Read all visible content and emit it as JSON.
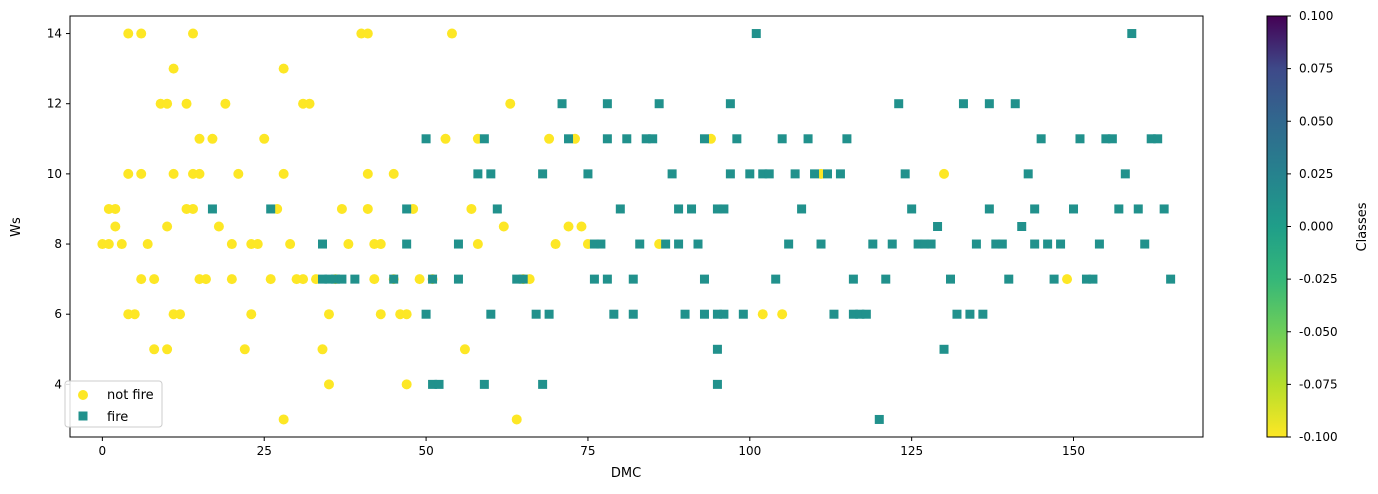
{
  "chart_data": {
    "type": "scatter",
    "xlabel": "DMC",
    "ylabel": "Ws",
    "xlim": [
      -5,
      170
    ],
    "ylim": [
      2.5,
      14.5
    ],
    "xticks": [
      0,
      25,
      50,
      75,
      100,
      125,
      150
    ],
    "yticks": [
      4,
      6,
      8,
      10,
      12,
      14
    ],
    "legend_position": "lower-left",
    "grid": false,
    "colorbar": {
      "label": "Classes",
      "range": [
        -0.1,
        0.1
      ],
      "colormap": "viridis",
      "ticks": [
        "0.100",
        "0.075",
        "0.050",
        "0.025",
        "0.000",
        "-0.025",
        "-0.050",
        "-0.075",
        "-0.100"
      ]
    },
    "series": [
      {
        "name": "not fire",
        "marker": "circle",
        "color": "#fde725",
        "points": [
          [
            0,
            8
          ],
          [
            1,
            9
          ],
          [
            1,
            8
          ],
          [
            2,
            9
          ],
          [
            2,
            8.5
          ],
          [
            3,
            8
          ],
          [
            4,
            14
          ],
          [
            4,
            10
          ],
          [
            4,
            6
          ],
          [
            5,
            6
          ],
          [
            6,
            14
          ],
          [
            6,
            10
          ],
          [
            6,
            7
          ],
          [
            7,
            8
          ],
          [
            8,
            5
          ],
          [
            8,
            7
          ],
          [
            9,
            12
          ],
          [
            10,
            12
          ],
          [
            10,
            8.5
          ],
          [
            10,
            5
          ],
          [
            11,
            13
          ],
          [
            11,
            10
          ],
          [
            11,
            6
          ],
          [
            12,
            6
          ],
          [
            13,
            12
          ],
          [
            13,
            9
          ],
          [
            14,
            14
          ],
          [
            14,
            10
          ],
          [
            14,
            9
          ],
          [
            15,
            10
          ],
          [
            15,
            11
          ],
          [
            15,
            7
          ],
          [
            16,
            7
          ],
          [
            17,
            11
          ],
          [
            18,
            8.5
          ],
          [
            19,
            12
          ],
          [
            20,
            8
          ],
          [
            20,
            7
          ],
          [
            21,
            10
          ],
          [
            22,
            5
          ],
          [
            23,
            8
          ],
          [
            23,
            6
          ],
          [
            24,
            8
          ],
          [
            25,
            11
          ],
          [
            26,
            7
          ],
          [
            27,
            9
          ],
          [
            28,
            13
          ],
          [
            28,
            10
          ],
          [
            28,
            3
          ],
          [
            29,
            8
          ],
          [
            30,
            7
          ],
          [
            31,
            12
          ],
          [
            31,
            7
          ],
          [
            32,
            12
          ],
          [
            33,
            7
          ],
          [
            34,
            5
          ],
          [
            35,
            6
          ],
          [
            35,
            4
          ],
          [
            36,
            7
          ],
          [
            37,
            9
          ],
          [
            38,
            8
          ],
          [
            40,
            14
          ],
          [
            41,
            14
          ],
          [
            41,
            10
          ],
          [
            41,
            9
          ],
          [
            42,
            8
          ],
          [
            42,
            7
          ],
          [
            43,
            8
          ],
          [
            43,
            6
          ],
          [
            45,
            10
          ],
          [
            45,
            7
          ],
          [
            46,
            6
          ],
          [
            47,
            6
          ],
          [
            47,
            4
          ],
          [
            48,
            9
          ],
          [
            49,
            7
          ],
          [
            51,
            7
          ],
          [
            53,
            11
          ],
          [
            54,
            14
          ],
          [
            56,
            5
          ],
          [
            57,
            9
          ],
          [
            58,
            11
          ],
          [
            58,
            8
          ],
          [
            62,
            8.5
          ],
          [
            63,
            12
          ],
          [
            64,
            3
          ],
          [
            65,
            7
          ],
          [
            66,
            7
          ],
          [
            69,
            11
          ],
          [
            70,
            8
          ],
          [
            72,
            8.5
          ],
          [
            73,
            11
          ],
          [
            74,
            8.5
          ],
          [
            75,
            8
          ],
          [
            86,
            8
          ],
          [
            94,
            11
          ],
          [
            102,
            6
          ],
          [
            105,
            6
          ],
          [
            111,
            10
          ],
          [
            130,
            10
          ],
          [
            149,
            7
          ]
        ]
      },
      {
        "name": "fire",
        "marker": "square",
        "color": "#21918c",
        "points": [
          [
            17,
            9
          ],
          [
            26,
            9
          ],
          [
            34,
            8
          ],
          [
            34,
            7
          ],
          [
            35,
            7
          ],
          [
            36,
            7
          ],
          [
            37,
            7
          ],
          [
            39,
            7
          ],
          [
            45,
            7
          ],
          [
            47,
            9
          ],
          [
            47,
            8
          ],
          [
            50,
            11
          ],
          [
            50,
            6
          ],
          [
            51,
            7
          ],
          [
            51,
            4
          ],
          [
            52,
            4
          ],
          [
            55,
            8
          ],
          [
            55,
            7
          ],
          [
            58,
            10
          ],
          [
            59,
            11
          ],
          [
            59,
            4
          ],
          [
            60,
            10
          ],
          [
            60,
            6
          ],
          [
            61,
            9
          ],
          [
            64,
            7
          ],
          [
            65,
            7
          ],
          [
            67,
            6
          ],
          [
            68,
            10
          ],
          [
            68,
            4
          ],
          [
            69,
            6
          ],
          [
            71,
            12
          ],
          [
            72,
            11
          ],
          [
            75,
            10
          ],
          [
            76,
            8
          ],
          [
            76,
            7
          ],
          [
            77,
            8
          ],
          [
            78,
            12
          ],
          [
            78,
            11
          ],
          [
            78,
            7
          ],
          [
            79,
            6
          ],
          [
            80,
            9
          ],
          [
            81,
            11
          ],
          [
            82,
            7
          ],
          [
            82,
            6
          ],
          [
            83,
            8
          ],
          [
            84,
            11
          ],
          [
            85,
            11
          ],
          [
            86,
            12
          ],
          [
            87,
            8
          ],
          [
            88,
            10
          ],
          [
            89,
            9
          ],
          [
            89,
            8
          ],
          [
            90,
            6
          ],
          [
            91,
            9
          ],
          [
            92,
            8
          ],
          [
            93,
            11
          ],
          [
            93,
            7
          ],
          [
            93,
            6
          ],
          [
            95,
            9
          ],
          [
            95,
            6
          ],
          [
            95,
            5
          ],
          [
            95,
            4
          ],
          [
            96,
            9
          ],
          [
            96,
            6
          ],
          [
            97,
            12
          ],
          [
            97,
            10
          ],
          [
            98,
            11
          ],
          [
            99,
            6
          ],
          [
            100,
            10
          ],
          [
            101,
            14
          ],
          [
            102,
            10
          ],
          [
            103,
            10
          ],
          [
            104,
            7
          ],
          [
            105,
            11
          ],
          [
            106,
            8
          ],
          [
            107,
            10
          ],
          [
            108,
            9
          ],
          [
            109,
            11
          ],
          [
            110,
            10
          ],
          [
            111,
            8
          ],
          [
            112,
            10
          ],
          [
            113,
            6
          ],
          [
            114,
            10
          ],
          [
            115,
            11
          ],
          [
            116,
            7
          ],
          [
            116,
            6
          ],
          [
            117,
            6
          ],
          [
            118,
            6
          ],
          [
            119,
            8
          ],
          [
            120,
            3
          ],
          [
            121,
            7
          ],
          [
            122,
            8
          ],
          [
            123,
            12
          ],
          [
            124,
            10
          ],
          [
            125,
            9
          ],
          [
            126,
            8
          ],
          [
            127,
            8
          ],
          [
            128,
            8
          ],
          [
            129,
            8.5
          ],
          [
            130,
            5
          ],
          [
            131,
            7
          ],
          [
            132,
            6
          ],
          [
            133,
            12
          ],
          [
            134,
            6
          ],
          [
            135,
            8
          ],
          [
            136,
            6
          ],
          [
            137,
            12
          ],
          [
            137,
            9
          ],
          [
            138,
            8
          ],
          [
            139,
            8
          ],
          [
            140,
            7
          ],
          [
            141,
            12
          ],
          [
            142,
            8.5
          ],
          [
            143,
            10
          ],
          [
            144,
            9
          ],
          [
            144,
            8
          ],
          [
            145,
            11
          ],
          [
            146,
            8
          ],
          [
            147,
            7
          ],
          [
            148,
            8
          ],
          [
            150,
            9
          ],
          [
            151,
            11
          ],
          [
            152,
            7
          ],
          [
            153,
            7
          ],
          [
            154,
            8
          ],
          [
            155,
            11
          ],
          [
            156,
            11
          ],
          [
            157,
            9
          ],
          [
            158,
            10
          ],
          [
            159,
            14
          ],
          [
            160,
            9
          ],
          [
            161,
            8
          ],
          [
            162,
            11
          ],
          [
            163,
            11
          ],
          [
            164,
            9
          ],
          [
            165,
            7
          ]
        ]
      }
    ]
  }
}
